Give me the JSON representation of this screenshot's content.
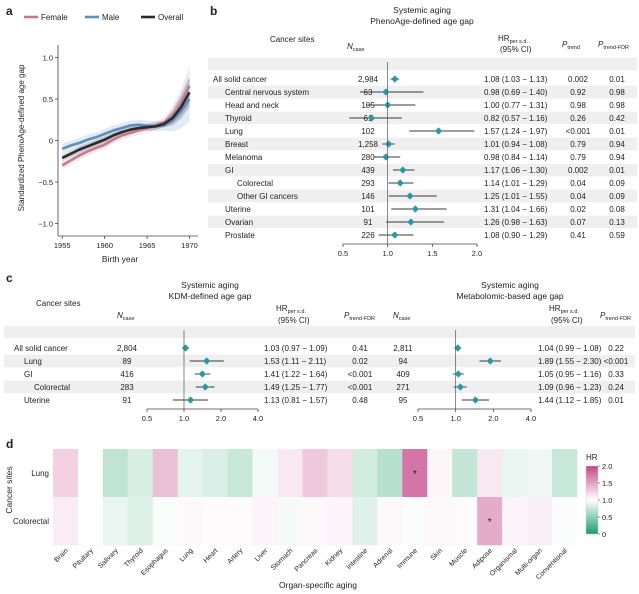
{
  "colors": {
    "female": "#c27a92",
    "male": "#5d8fbe",
    "overall": "#2b2b2b",
    "point": "#2d97a6",
    "ci_line": "#3a3a3a",
    "stripe": "#efefef",
    "heat_low": "#1a9e68",
    "heat_mid": "#ffffff",
    "heat_high": "#c6478a"
  },
  "panel_labels": {
    "a": "a",
    "b": "b",
    "c": "c",
    "d": "d"
  },
  "chart_data": [
    {
      "id": "a",
      "type": "line",
      "xlabel": "Birth year",
      "ylabel": "Standardized PhenoAge-defined age gap",
      "xlim": [
        1954.5,
        1971
      ],
      "ylim": [
        -1.15,
        1.15
      ],
      "xticks": [
        1955,
        1960,
        1965,
        1970
      ],
      "yticks": [
        -1.0,
        -0.5,
        0,
        0.5,
        1.0
      ],
      "ytick_labels": [
        "−1.0",
        "−0.5",
        "0",
        "0.5",
        "1.0"
      ],
      "legend": [
        "Female",
        "Male",
        "Overall"
      ],
      "legend_position": "top",
      "x": [
        1955,
        1956,
        1957,
        1958,
        1959,
        1960,
        1961,
        1962,
        1963,
        1964,
        1965,
        1966,
        1967,
        1968,
        1969,
        1970
      ],
      "series": [
        {
          "name": "Female",
          "values": [
            -0.3,
            -0.24,
            -0.18,
            -0.13,
            -0.09,
            -0.05,
            0.01,
            0.06,
            0.09,
            0.12,
            0.15,
            0.18,
            0.22,
            0.3,
            0.45,
            0.66
          ],
          "band": 0.05
        },
        {
          "name": "Male",
          "values": [
            -0.1,
            -0.06,
            -0.03,
            0.01,
            0.04,
            0.08,
            0.12,
            0.15,
            0.18,
            0.19,
            0.18,
            0.17,
            0.18,
            0.24,
            0.35,
            0.5
          ],
          "band": 0.06
        },
        {
          "name": "Overall",
          "values": [
            -0.21,
            -0.16,
            -0.11,
            -0.07,
            -0.03,
            0.01,
            0.06,
            0.1,
            0.13,
            0.15,
            0.16,
            0.17,
            0.2,
            0.27,
            0.4,
            0.58
          ],
          "band": 0.04
        }
      ]
    },
    {
      "id": "b",
      "type": "forest",
      "title_line1": "Systemic aging",
      "title_line2": "PhenoAge-defined age gap",
      "col_sites": "Cancer sites",
      "col_n": "N",
      "col_n_sub": "case",
      "col_hr": "HR",
      "col_hr_sub": "per s.d.",
      "col_ci": "(95% CI)",
      "col_ptrend": "P",
      "col_ptrend_sub": "trend",
      "col_pfdr": "P",
      "col_pfdr_sub": "trend-FDR",
      "xlim": [
        0.5,
        2.0
      ],
      "xticks": [
        0.5,
        1.0,
        1.5,
        2.0
      ],
      "xtick_labels": [
        "0.5",
        "1.0",
        "1.5",
        "2.0"
      ],
      "ref_line": 1.0,
      "rows": [
        {
          "site": "All solid cancer",
          "indent": 0,
          "n": "2,984",
          "hr": 1.08,
          "lo": 1.03,
          "hi": 1.13,
          "hr_ci": "1.08 (1.03 − 1.13)",
          "p": "0.002",
          "pfdr": "0.01"
        },
        {
          "site": "Central nervous system",
          "indent": 1,
          "n": "63",
          "hr": 0.98,
          "lo": 0.69,
          "hi": 1.4,
          "hr_ci": "0.98 (0.69 − 1.40)",
          "p": "0.92",
          "pfdr": "0.98"
        },
        {
          "site": "Head and neck",
          "indent": 1,
          "n": "105",
          "hr": 1.0,
          "lo": 0.77,
          "hi": 1.31,
          "hr_ci": "1.00 (0.77 − 1.31)",
          "p": "0.98",
          "pfdr": "0.98"
        },
        {
          "site": "Thyroid",
          "indent": 1,
          "n": "61",
          "hr": 0.82,
          "lo": 0.57,
          "hi": 1.16,
          "hr_ci": "0.82 (0.57 − 1.16)",
          "p": "0.26",
          "pfdr": "0.42"
        },
        {
          "site": "Lung",
          "indent": 1,
          "n": "102",
          "hr": 1.57,
          "lo": 1.24,
          "hi": 1.97,
          "hr_ci": "1.57 (1.24 − 1.97)",
          "p": "<0.001",
          "pfdr": "0.01"
        },
        {
          "site": "Breast",
          "indent": 1,
          "n": "1,258",
          "hr": 1.01,
          "lo": 0.94,
          "hi": 1.08,
          "hr_ci": "1.01 (0.94 − 1.08)",
          "p": "0.79",
          "pfdr": "0.94"
        },
        {
          "site": "Melanoma",
          "indent": 1,
          "n": "280",
          "hr": 0.98,
          "lo": 0.84,
          "hi": 1.14,
          "hr_ci": "0.98 (0.84 − 1.14)",
          "p": "0.79",
          "pfdr": "0.94"
        },
        {
          "site": "GI",
          "indent": 1,
          "n": "439",
          "hr": 1.17,
          "lo": 1.06,
          "hi": 1.3,
          "hr_ci": "1.17 (1.06 − 1.30)",
          "p": "0.002",
          "pfdr": "0.01"
        },
        {
          "site": "Colorectal",
          "indent": 2,
          "n": "293",
          "hr": 1.14,
          "lo": 1.01,
          "hi": 1.29,
          "hr_ci": "1.14 (1.01 − 1.29)",
          "p": "0.04",
          "pfdr": "0.09"
        },
        {
          "site": "Other GI cancers",
          "indent": 2,
          "n": "146",
          "hr": 1.25,
          "lo": 1.01,
          "hi": 1.55,
          "hr_ci": "1.25 (1.01 − 1.55)",
          "p": "0.04",
          "pfdr": "0.09"
        },
        {
          "site": "Uterine",
          "indent": 1,
          "n": "101",
          "hr": 1.31,
          "lo": 1.04,
          "hi": 1.66,
          "hr_ci": "1.31 (1.04 − 1.66)",
          "p": "0.02",
          "pfdr": "0.08"
        },
        {
          "site": "Ovarian",
          "indent": 1,
          "n": "91",
          "hr": 1.26,
          "lo": 0.98,
          "hi": 1.63,
          "hr_ci": "1.26 (0.98 − 1.63)",
          "p": "0.07",
          "pfdr": "0.13"
        },
        {
          "site": "Prostate",
          "indent": 1,
          "n": "226",
          "hr": 1.08,
          "lo": 0.9,
          "hi": 1.29,
          "hr_ci": "1.08 (0.90 − 1.29)",
          "p": "0.41",
          "pfdr": "0.59"
        }
      ]
    },
    {
      "id": "c",
      "type": "forest",
      "col_sites": "Cancer sites",
      "sites": [
        {
          "site": "All solid cancer",
          "indent": 0
        },
        {
          "site": "Lung",
          "indent": 1
        },
        {
          "site": "GI",
          "indent": 1
        },
        {
          "site": "Colorectal",
          "indent": 2
        },
        {
          "site": "Uterine",
          "indent": 1
        }
      ],
      "xlim": [
        0.5,
        4.0
      ],
      "xticks": [
        0.5,
        1.0,
        2.0,
        4.0
      ],
      "xtick_labels": [
        "0.5",
        "1.0",
        "2.0",
        "4.0"
      ],
      "scale": "log",
      "ref_line": 1.0,
      "subpanels": [
        {
          "title_line1": "Systemic aging",
          "title_line2": "KDM-defined age gap",
          "col_n": "N",
          "col_n_sub": "case",
          "col_hr": "HR",
          "col_hr_sub": "per s.d.",
          "col_ci": "(95% CI)",
          "col_p": "P",
          "col_p_sub": "trend-FDR",
          "rows": [
            {
              "n": "2,804",
              "hr": 1.03,
              "lo": 0.97,
              "hi": 1.09,
              "hr_ci": "1.03 (0.97 − 1.09)",
              "p": "0.41"
            },
            {
              "n": "89",
              "hr": 1.53,
              "lo": 1.11,
              "hi": 2.11,
              "hr_ci": "1.53 (1.11 − 2.11)",
              "p": "0.02"
            },
            {
              "n": "416",
              "hr": 1.41,
              "lo": 1.22,
              "hi": 1.64,
              "hr_ci": "1.41 (1.22 − 1.64)",
              "p": "<0.001"
            },
            {
              "n": "283",
              "hr": 1.49,
              "lo": 1.25,
              "hi": 1.77,
              "hr_ci": "1.49 (1.25 − 1.77)",
              "p": "<0.001"
            },
            {
              "n": "91",
              "hr": 1.13,
              "lo": 0.81,
              "hi": 1.57,
              "hr_ci": "1.13 (0.81 − 1.57)",
              "p": "0.48"
            }
          ]
        },
        {
          "title_line1": "Systemic aging",
          "title_line2": "Metabolomic-based age gap",
          "col_n": "N",
          "col_n_sub": "case",
          "col_hr": "HR",
          "col_hr_sub": "per s.d.",
          "col_ci": "(95% CI)",
          "col_p": "P",
          "col_p_sub": "trend-FDR",
          "rows": [
            {
              "n": "2,811",
              "hr": 1.04,
              "lo": 0.99,
              "hi": 1.08,
              "hr_ci": "1.04 (0.99 − 1.08)",
              "p": "0.22"
            },
            {
              "n": "94",
              "hr": 1.89,
              "lo": 1.55,
              "hi": 2.3,
              "hr_ci": "1.89 (1.55 − 2.30)",
              "p": "<0.001"
            },
            {
              "n": "409",
              "hr": 1.05,
              "lo": 0.95,
              "hi": 1.16,
              "hr_ci": "1.05 (0.95 − 1.16)",
              "p": "0.33"
            },
            {
              "n": "271",
              "hr": 1.09,
              "lo": 0.96,
              "hi": 1.23,
              "hr_ci": "1.09 (0.96 − 1.23)",
              "p": "0.24"
            },
            {
              "n": "95",
              "hr": 1.44,
              "lo": 1.12,
              "hi": 1.85,
              "hr_ci": "1.44 (1.12 − 1.85)",
              "p": "0.01"
            }
          ]
        }
      ]
    },
    {
      "id": "d",
      "type": "heatmap",
      "ylabel": "Cancer sites",
      "xlabel": "Organ-specific aging",
      "rows": [
        "Lung",
        "Colorectal"
      ],
      "columns": [
        "Brain",
        "Pituitary",
        "Salivary",
        "Thyroid",
        "Esophagus",
        "Lung",
        "Heart",
        "Artery",
        "Liver",
        "Stomach",
        "Pancreas",
        "Kidney",
        "Intestine",
        "Adrenal",
        "Immune",
        "Skin",
        "Muscle",
        "Adipose",
        "Organismal",
        "Multi-organ",
        "Conventional"
      ],
      "values": [
        [
          1.25,
          1.0,
          0.72,
          0.82,
          1.35,
          0.88,
          0.84,
          0.76,
          0.95,
          1.12,
          1.3,
          1.18,
          0.8,
          0.68,
          1.75,
          1.05,
          0.74,
          1.12,
          0.9,
          0.93,
          0.75
        ],
        [
          1.1,
          1.0,
          0.9,
          0.85,
          0.97,
          1.04,
          1.02,
          1.02,
          1.06,
          0.96,
          1.04,
          1.06,
          0.86,
          1.03,
          0.98,
          1.04,
          1.02,
          1.45,
          1.06,
          1.08,
          0.98
        ]
      ],
      "stars": [
        [
          0,
          14
        ],
        [
          1,
          17
        ]
      ],
      "star_label": "*",
      "legend_title": "HR",
      "legend_ticks": [
        0.0,
        0.5,
        1.0,
        1.5,
        2.0
      ],
      "legend_tick_labels": [
        "0",
        "0.5",
        "1.0",
        "1.5",
        "2.0"
      ],
      "vmin": 0.0,
      "vmax": 2.0
    }
  ]
}
